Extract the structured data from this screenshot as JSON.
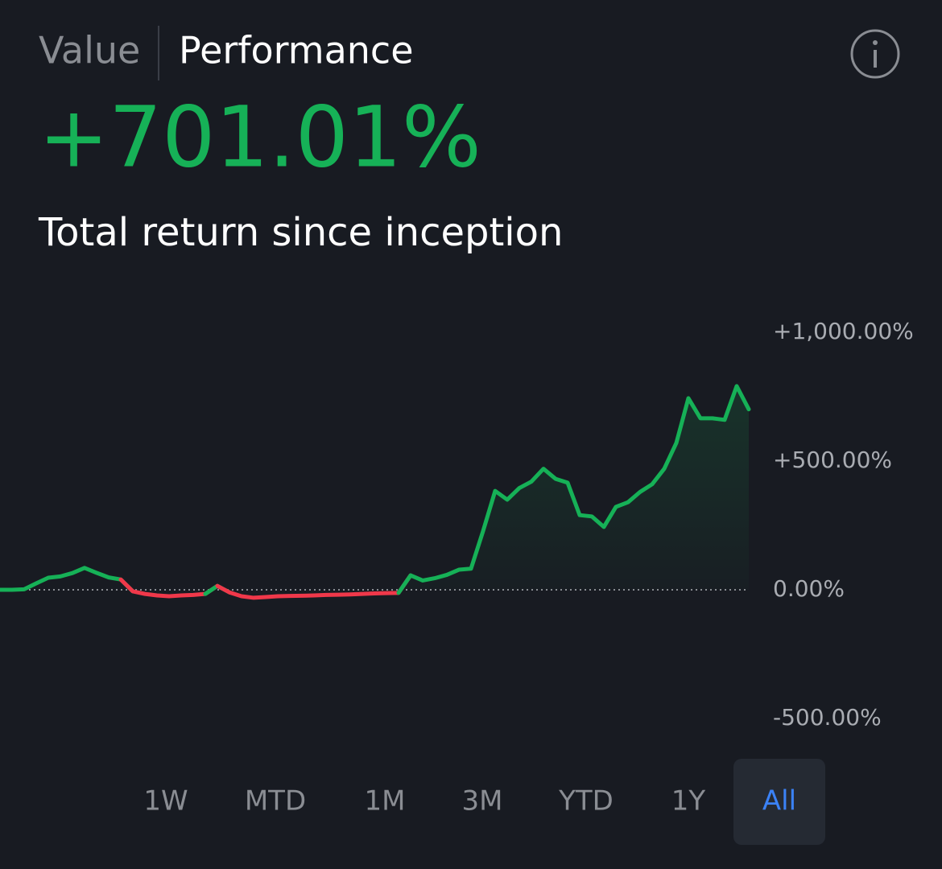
{
  "tabs": [
    "Value",
    "Performance"
  ],
  "active_tab": 1,
  "headline": "+701.01%",
  "subtitle": "Total return since inception",
  "chart_data": {
    "type": "line",
    "values": [
      0,
      0,
      2,
      25,
      47,
      52,
      65,
      85,
      66,
      48,
      40,
      -6,
      -16,
      -22,
      -25,
      -22,
      -20,
      -16,
      15,
      -10,
      -25,
      -31,
      -28,
      -25,
      -24,
      -23,
      -22,
      -20,
      -19,
      -18,
      -16,
      -14,
      -13,
      -12,
      56,
      36,
      45,
      58,
      78,
      82,
      228,
      384,
      350,
      395,
      420,
      470,
      431,
      416,
      290,
      285,
      244,
      322,
      340,
      380,
      410,
      470,
      570,
      744,
      666,
      666,
      660,
      791,
      701.01
    ],
    "positive_color": "#16b157",
    "negative_color": "#f0384a",
    "ylim": [
      -500,
      1000
    ],
    "yticks": [
      {
        "value": 1000,
        "label": "+1,000.00%"
      },
      {
        "value": 500,
        "label": "+500.00%"
      },
      {
        "value": 0,
        "label": "0.00%"
      },
      {
        "value": -500,
        "label": "-500.00%"
      }
    ]
  },
  "ranges": [
    "1W",
    "MTD",
    "1M",
    "3M",
    "YTD",
    "1Y",
    "All"
  ],
  "active_range": 6
}
